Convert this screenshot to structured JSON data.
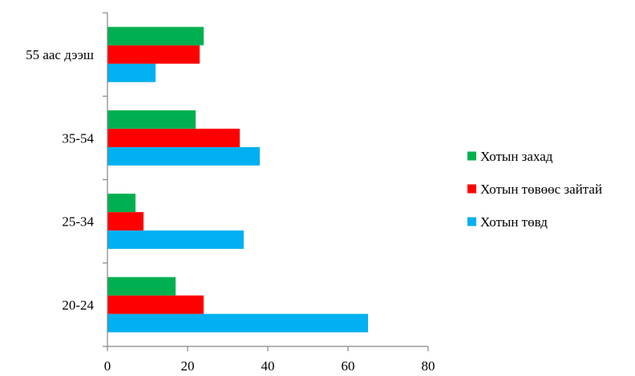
{
  "chart_data": {
    "type": "bar",
    "orientation": "horizontal",
    "categories": [
      "20-24",
      "25-34",
      "35-54",
      "55 аас дээш"
    ],
    "series": [
      {
        "name": "Хотын төвд",
        "color": "#00B0F0",
        "values": [
          65,
          34,
          38,
          12
        ]
      },
      {
        "name": "Хотын төвөөс зайтай",
        "color": "#FF0000",
        "values": [
          24,
          9,
          33,
          23
        ]
      },
      {
        "name": "Хотын захад",
        "color": "#00B050",
        "values": [
          17,
          7,
          22,
          24
        ]
      }
    ],
    "xlim": [
      0,
      80
    ],
    "xticks": [
      "0",
      "20",
      "40",
      "60",
      "80"
    ],
    "title": "",
    "xlabel": "",
    "ylabel": "",
    "grid": false,
    "legend_position": "right"
  }
}
